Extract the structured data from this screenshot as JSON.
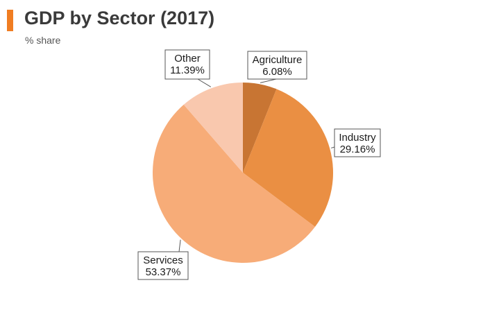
{
  "header": {
    "title": "GDP by Sector (2017)",
    "subtitle": "% share",
    "accent_color": "#f07d22"
  },
  "chart_data": {
    "type": "pie",
    "title": "GDP by Sector (2017)",
    "subtitle": "% share",
    "slices": [
      {
        "label": "Agriculture",
        "value": 6.08,
        "display": "6.08%",
        "color": "#c87533"
      },
      {
        "label": "Industry",
        "value": 29.16,
        "display": "29.16%",
        "color": "#ea8f43"
      },
      {
        "label": "Services",
        "value": 53.37,
        "display": "53.37%",
        "color": "#f7ac78"
      },
      {
        "label": "Other",
        "value": 11.39,
        "display": "11.39%",
        "color": "#f9c8ae"
      }
    ],
    "start_angle": "12 o'clock",
    "direction": "clockwise",
    "labels": "callouts with leader lines"
  }
}
